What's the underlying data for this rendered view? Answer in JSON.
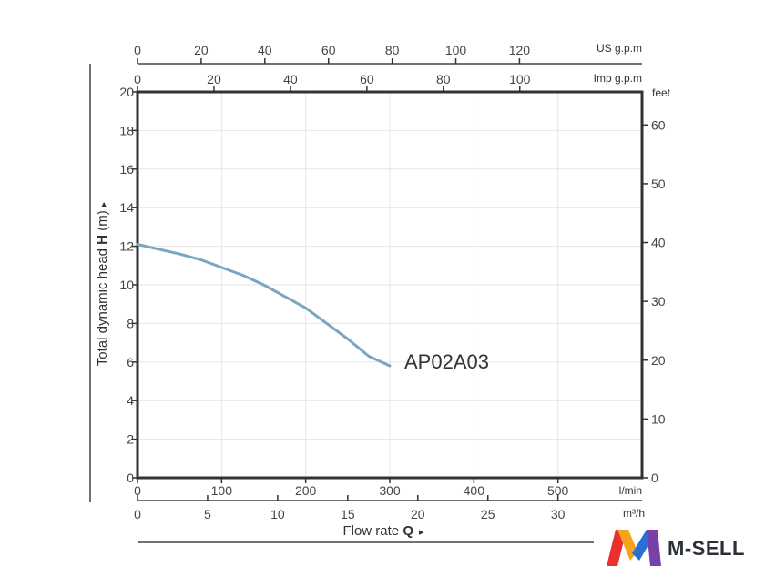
{
  "chart_data": {
    "type": "line",
    "series": [
      {
        "name": "AP02A03",
        "x": [
          0,
          25,
          50,
          75,
          100,
          125,
          150,
          175,
          200,
          225,
          250,
          275,
          300
        ],
        "y": [
          12.1,
          11.85,
          11.6,
          11.3,
          10.9,
          10.5,
          10.0,
          9.4,
          8.8,
          8.0,
          7.2,
          6.3,
          5.8
        ]
      }
    ],
    "color": "#7ba6bf",
    "label": "AP02A03",
    "ylabel_prefix": "Total dynamic head ",
    "ylabel_bold": "H",
    "ylabel_suffix": " (m)",
    "ylabel_arrow": "▸",
    "xlabel_prefix": "Flow rate ",
    "xlabel_bold": "Q",
    "xlabel_arrow": "▸",
    "xlim": [
      0,
      600
    ],
    "ylim": [
      0,
      20
    ],
    "grid": true,
    "axes": {
      "left_ticks": [
        "0",
        "2",
        "4",
        "6",
        "8",
        "10",
        "12",
        "14",
        "16",
        "18",
        "20"
      ],
      "right_unit": "feet",
      "right_ticks": [
        "0",
        "10",
        "20",
        "30",
        "40",
        "50",
        "60"
      ],
      "bottom_unit_lmin": "l/min",
      "bottom_ticks_lmin": [
        "0",
        "100",
        "200",
        "300",
        "400",
        "500"
      ],
      "bottom_unit_m3h": "m³/h",
      "bottom_ticks_m3h": [
        "0",
        "5",
        "10",
        "15",
        "20",
        "25",
        "30"
      ],
      "top_unit_us": "US g.p.m",
      "top_ticks_us": [
        "0",
        "20",
        "40",
        "60",
        "80",
        "100",
        "120"
      ],
      "top_unit_imp": "Imp g.p.m",
      "top_ticks_imp": [
        "0",
        "20",
        "40",
        "60",
        "80",
        "100"
      ]
    }
  },
  "logo": {
    "text": "M-SELL",
    "colors": [
      "#e8312f",
      "#f7a21b",
      "#2a6fd6",
      "#7b3fa8"
    ]
  }
}
